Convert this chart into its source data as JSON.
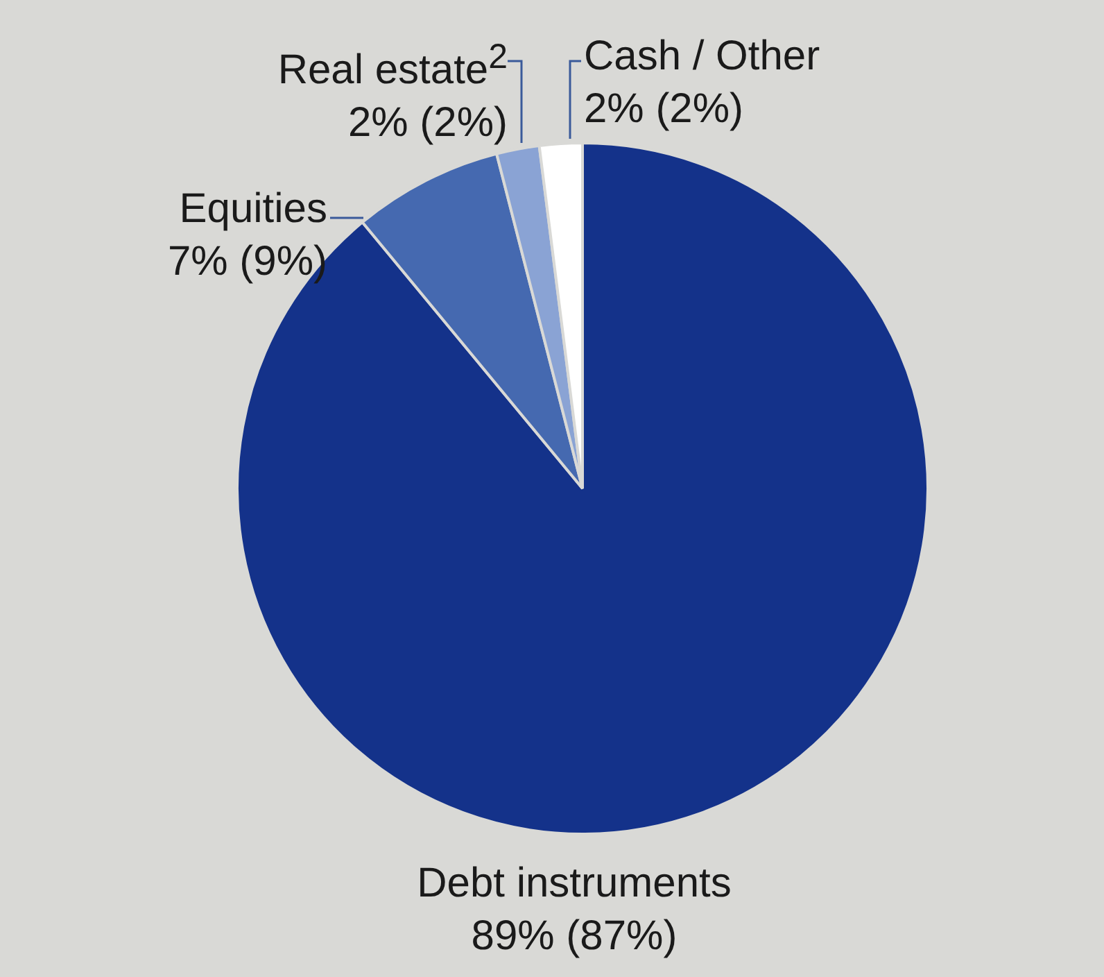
{
  "chart_data": {
    "type": "pie",
    "categories": [
      "Debt instruments",
      "Equities",
      "Real estate$^{2}$",
      "Cash / Other"
    ],
    "values": [
      89,
      7,
      2,
      2
    ],
    "colors": [
      "#14328a",
      "#4569b0",
      "#8aa3d4",
      "#ffffff"
    ],
    "value_labels": [
      "89% (87%)",
      "7% (9%)",
      "2% (2%)",
      "2% (2%)"
    ],
    "legend": false
  }
}
